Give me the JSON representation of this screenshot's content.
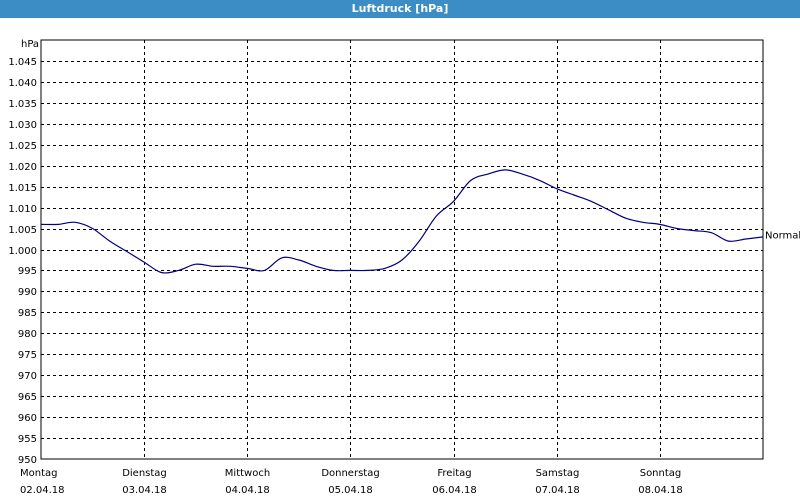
{
  "title": "Luftdruck [hPa]",
  "chart_data": {
    "type": "line",
    "title": "Luftdruck [hPa]",
    "ylabel": "hPa",
    "ylim": [
      950,
      1050
    ],
    "yticks": [
      {
        "value": 950,
        "label": "950"
      },
      {
        "value": 955,
        "label": "955"
      },
      {
        "value": 960,
        "label": "960"
      },
      {
        "value": 965,
        "label": "965"
      },
      {
        "value": 970,
        "label": "970"
      },
      {
        "value": 975,
        "label": "975"
      },
      {
        "value": 980,
        "label": "980"
      },
      {
        "value": 985,
        "label": "985"
      },
      {
        "value": 990,
        "label": "990"
      },
      {
        "value": 995,
        "label": "995"
      },
      {
        "value": 1000,
        "label": "1.000"
      },
      {
        "value": 1005,
        "label": "1.005"
      },
      {
        "value": 1010,
        "label": "1.010"
      },
      {
        "value": 1015,
        "label": "1.015"
      },
      {
        "value": 1020,
        "label": "1.020"
      },
      {
        "value": 1025,
        "label": "1.025"
      },
      {
        "value": 1030,
        "label": "1.030"
      },
      {
        "value": 1035,
        "label": "1.035"
      },
      {
        "value": 1040,
        "label": "1.040"
      },
      {
        "value": 1045,
        "label": "1.045"
      }
    ],
    "xlim": [
      "2018-04-02T00:00",
      "2018-04-09T00:00"
    ],
    "xticks": [
      {
        "x": "2018-04-02T00:00",
        "day": "Montag",
        "date": "02.04.18"
      },
      {
        "x": "2018-04-03T00:00",
        "day": "Dienstag",
        "date": "03.04.18"
      },
      {
        "x": "2018-04-04T00:00",
        "day": "Mittwoch",
        "date": "04.04.18"
      },
      {
        "x": "2018-04-05T00:00",
        "day": "Donnerstag",
        "date": "05.04.18"
      },
      {
        "x": "2018-04-06T00:00",
        "day": "Freitag",
        "date": "06.04.18"
      },
      {
        "x": "2018-04-07T00:00",
        "day": "Samstag",
        "date": "07.04.18"
      },
      {
        "x": "2018-04-08T00:00",
        "day": "Sonntag",
        "date": "08.04.18"
      }
    ],
    "grid": true,
    "annotations": [
      {
        "text": "Normal",
        "y": 1003.5
      }
    ],
    "series": [
      {
        "color": "#000080",
        "x": [
          "2018-04-02T00:00",
          "2018-04-02T04:00",
          "2018-04-02T08:00",
          "2018-04-02T12:00",
          "2018-04-02T16:00",
          "2018-04-02T20:00",
          "2018-04-03T00:00",
          "2018-04-03T04:00",
          "2018-04-03T08:00",
          "2018-04-03T12:00",
          "2018-04-03T16:00",
          "2018-04-03T20:00",
          "2018-04-04T00:00",
          "2018-04-04T04:00",
          "2018-04-04T08:00",
          "2018-04-04T12:00",
          "2018-04-04T16:00",
          "2018-04-04T20:00",
          "2018-04-05T00:00",
          "2018-04-05T04:00",
          "2018-04-05T08:00",
          "2018-04-05T12:00",
          "2018-04-05T16:00",
          "2018-04-05T20:00",
          "2018-04-06T00:00",
          "2018-04-06T04:00",
          "2018-04-06T08:00",
          "2018-04-06T12:00",
          "2018-04-06T16:00",
          "2018-04-06T20:00",
          "2018-04-07T00:00",
          "2018-04-07T04:00",
          "2018-04-07T08:00",
          "2018-04-07T12:00",
          "2018-04-07T16:00",
          "2018-04-07T20:00",
          "2018-04-08T00:00",
          "2018-04-08T04:00",
          "2018-04-08T08:00",
          "2018-04-08T12:00",
          "2018-04-08T16:00",
          "2018-04-08T20:00",
          "2018-04-09T00:00"
        ],
        "y": [
          1006,
          1006,
          1006.5,
          1005,
          1002,
          999.5,
          997,
          994.5,
          995,
          996.5,
          996,
          996,
          995.5,
          995,
          998,
          997.5,
          996,
          995,
          995,
          995,
          995.5,
          997.5,
          1002,
          1008,
          1011.5,
          1016.5,
          1018,
          1019,
          1018,
          1016.5,
          1014.5,
          1013,
          1011.5,
          1009.5,
          1007.5,
          1006.5,
          1006,
          1005,
          1004.5,
          1004,
          1002,
          1002.5,
          1003
        ]
      }
    ]
  }
}
